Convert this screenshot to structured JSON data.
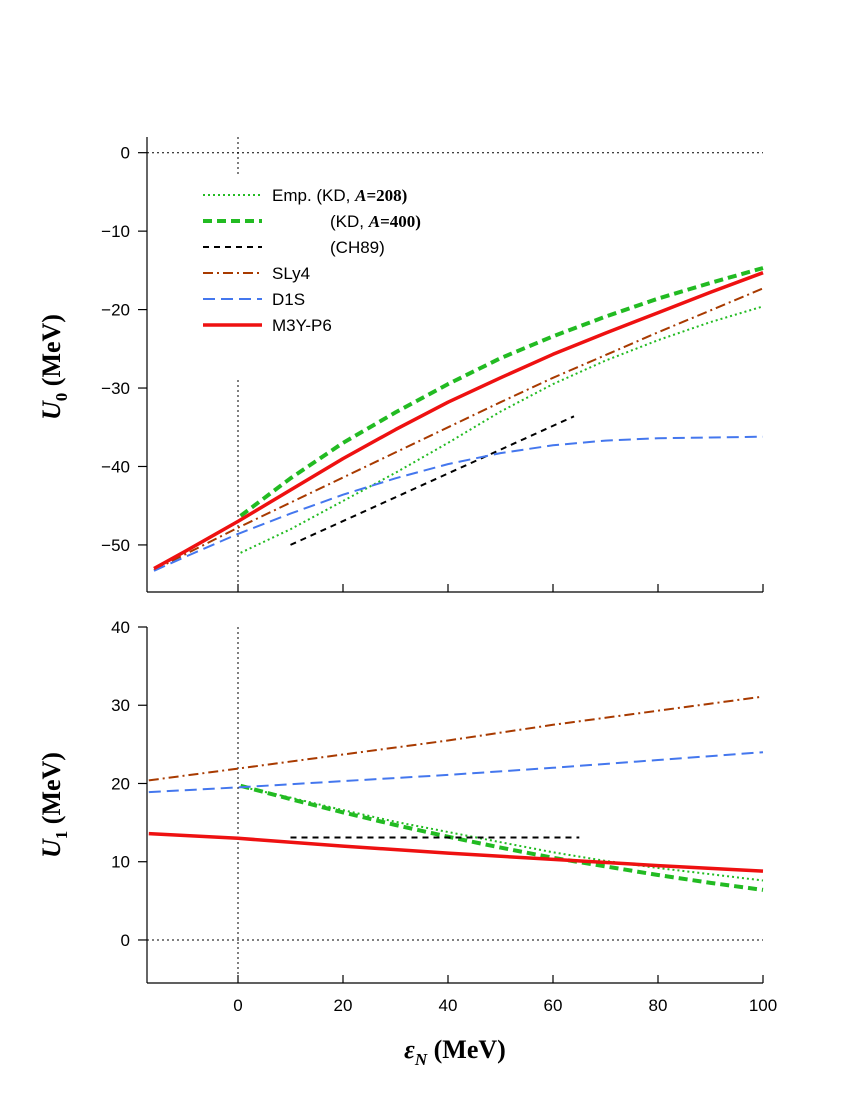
{
  "chart_data": [
    {
      "type": "line",
      "id": "top",
      "xlim": [
        -17,
        100
      ],
      "ylim": [
        -56,
        2
      ],
      "yticks": [
        0,
        -10,
        -20,
        -30,
        -40,
        -50
      ],
      "ytick_labels": [
        "0",
        "−10",
        "−20",
        "−30",
        "−40",
        "−50"
      ],
      "ylabel_symbol": "U",
      "ylabel_sub": "0",
      "ylabel_unit": "(MeV)",
      "reference_lines": {
        "x": 0,
        "y": 0
      },
      "legend": {
        "position": "top-left",
        "entries": [
          {
            "series": "Emp_KD_208",
            "parts": [
              "Emp. (KD, ",
              "A",
              "=208)"
            ]
          },
          {
            "series": "KD_400",
            "parts": [
              "(KD, ",
              "A",
              "=400)"
            ]
          },
          {
            "series": "CH89",
            "parts": [
              "(CH89)"
            ]
          },
          {
            "series": "SLy4",
            "parts": [
              "SLy4"
            ]
          },
          {
            "series": "D1S",
            "parts": [
              "D1S"
            ]
          },
          {
            "series": "M3Y-P6",
            "parts": [
              "M3Y-P6"
            ]
          }
        ]
      },
      "series": [
        {
          "name": "Emp_KD_208",
          "color": "#22bb22",
          "dash": "2 3",
          "width": 2,
          "x": [
            0.5,
            10,
            20,
            30,
            40,
            50,
            60,
            70,
            80,
            90,
            100
          ],
          "y": [
            -51.0,
            -48.0,
            -44.4,
            -40.8,
            -37.0,
            -33.0,
            -29.5,
            -26.5,
            -23.9,
            -21.6,
            -19.6
          ]
        },
        {
          "name": "KD_400",
          "color": "#22bb22",
          "dash": "9 5",
          "width": 4,
          "x": [
            0.5,
            10,
            20,
            30,
            40,
            50,
            60,
            70,
            80,
            90,
            100
          ],
          "y": [
            -46.3,
            -41.5,
            -37.0,
            -33.1,
            -29.5,
            -26.2,
            -23.4,
            -20.9,
            -18.6,
            -16.6,
            -14.7
          ]
        },
        {
          "name": "CH89",
          "color": "#000000",
          "dash": "6 5",
          "width": 2,
          "x": [
            10,
            64
          ],
          "y": [
            -50.0,
            -33.6
          ]
        },
        {
          "name": "SLy4",
          "color": "#a83a00",
          "dash": "10 4 2 4",
          "width": 2,
          "x": [
            -16,
            0,
            10,
            20,
            30,
            40,
            50,
            60,
            70,
            80,
            90,
            100
          ],
          "y": [
            -53.2,
            -47.8,
            -44.6,
            -41.4,
            -38.2,
            -35.0,
            -31.8,
            -28.7,
            -25.8,
            -22.9,
            -20.1,
            -17.3
          ]
        },
        {
          "name": "D1S",
          "color": "#4477ee",
          "dash": "12 6",
          "width": 2,
          "x": [
            -16,
            -10,
            0,
            10,
            20,
            30,
            40,
            50,
            60,
            70,
            80,
            90,
            100
          ],
          "y": [
            -53.3,
            -51.5,
            -48.6,
            -46.0,
            -43.6,
            -41.5,
            -39.7,
            -38.3,
            -37.3,
            -36.7,
            -36.4,
            -36.3,
            -36.2
          ]
        },
        {
          "name": "M3Y-P6",
          "color": "#ee1111",
          "dash": "",
          "width": 3.5,
          "x": [
            -16,
            -10,
            0,
            10,
            20,
            30,
            40,
            50,
            60,
            70,
            80,
            90,
            100
          ],
          "y": [
            -53.0,
            -50.8,
            -47.0,
            -43.0,
            -39.0,
            -35.3,
            -31.8,
            -28.7,
            -25.7,
            -23.0,
            -20.4,
            -17.8,
            -15.3
          ]
        }
      ]
    },
    {
      "type": "line",
      "id": "bottom",
      "xlim": [
        -17,
        100
      ],
      "ylim": [
        -5.5,
        40
      ],
      "yticks": [
        40,
        30,
        20,
        10,
        0
      ],
      "ytick_labels": [
        "40",
        "30",
        "20",
        "10",
        "0"
      ],
      "xticks": [
        0,
        20,
        40,
        60,
        80,
        100
      ],
      "xtick_labels": [
        "0",
        "20",
        "40",
        "60",
        "80",
        "100"
      ],
      "ylabel_symbol": "U",
      "ylabel_sub": "1",
      "ylabel_unit": "(MeV)",
      "xlabel_symbol": "ε",
      "xlabel_sub": "N",
      "xlabel_unit": "(MeV)",
      "reference_lines": {
        "x": 0,
        "y": 0
      },
      "series": [
        {
          "name": "Emp_KD_208",
          "color": "#22bb22",
          "dash": "2 3",
          "width": 2,
          "x": [
            0.5,
            10,
            20,
            30,
            40,
            50,
            60,
            70,
            80,
            90,
            100
          ],
          "y": [
            19.6,
            18.2,
            16.6,
            15.1,
            13.8,
            12.5,
            11.2,
            10.1,
            9.2,
            8.4,
            7.6
          ]
        },
        {
          "name": "KD_400",
          "color": "#22bb22",
          "dash": "9 5",
          "width": 4,
          "x": [
            0.5,
            10,
            20,
            30,
            40,
            50,
            60,
            70,
            80,
            90,
            100
          ],
          "y": [
            19.7,
            18.0,
            16.3,
            14.7,
            13.2,
            11.8,
            10.5,
            9.4,
            8.3,
            7.3,
            6.4
          ]
        },
        {
          "name": "CH89",
          "color": "#000000",
          "dash": "6 5",
          "width": 2,
          "x": [
            10,
            65
          ],
          "y": [
            13.1,
            13.1
          ]
        },
        {
          "name": "SLy4",
          "color": "#a83a00",
          "dash": "10 4 2 4",
          "width": 2,
          "x": [
            -17,
            0,
            20,
            40,
            60,
            80,
            100
          ],
          "y": [
            20.4,
            21.9,
            23.7,
            25.5,
            27.5,
            29.3,
            31.1
          ]
        },
        {
          "name": "D1S",
          "color": "#4477ee",
          "dash": "12 6",
          "width": 2,
          "x": [
            -17,
            0,
            20,
            40,
            60,
            80,
            100
          ],
          "y": [
            18.9,
            19.5,
            20.3,
            21.1,
            22.0,
            23.0,
            24.0
          ]
        },
        {
          "name": "M3Y-P6",
          "color": "#ee1111",
          "dash": "",
          "width": 3.5,
          "x": [
            -17,
            0,
            20,
            40,
            60,
            80,
            100
          ],
          "y": [
            13.6,
            13.0,
            12.0,
            11.1,
            10.3,
            9.5,
            8.8
          ]
        }
      ]
    }
  ]
}
